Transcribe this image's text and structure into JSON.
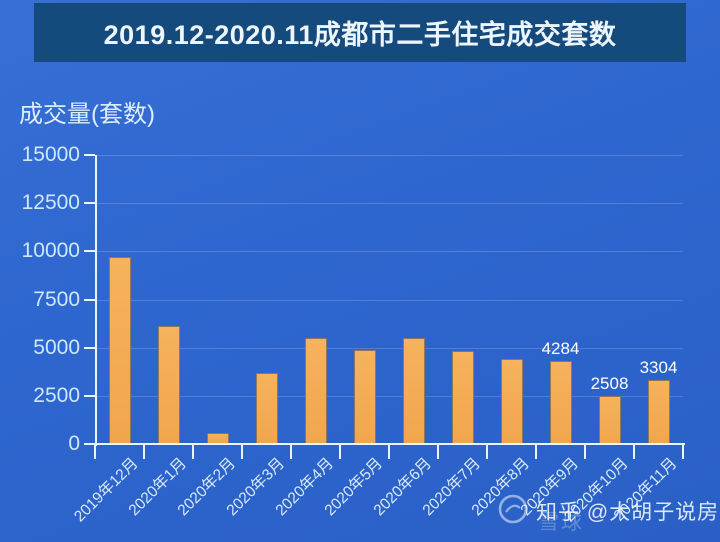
{
  "banner": {
    "title": "2019.12-2020.11成都市二手住宅成交套数"
  },
  "axis_label": "成交量(套数)",
  "watermark": {
    "logo_icon": "xueqiu-snowball-logo",
    "text": "知乎 @大胡子说房",
    "ghost_text": "雪球"
  },
  "colors": {
    "background": "#2e66cf",
    "banner": "#154a7d",
    "bar": "#f4ab52",
    "axis": "#e9f4fc",
    "tick_label": "#cde8fa",
    "data_label": "#ffffff"
  },
  "chart_data": {
    "type": "bar",
    "title": "2019.12-2020.11成都市二手住宅成交套数",
    "xlabel": "",
    "ylabel": "成交量(套数)",
    "categories": [
      "2019年12月",
      "2020年1月",
      "2020年2月",
      "2020年3月",
      "2020年4月",
      "2020年5月",
      "2020年6月",
      "2020年7月",
      "2020年8月",
      "2020年9月",
      "2020年10月",
      "2020年11月"
    ],
    "values": [
      9700,
      6100,
      550,
      3700,
      5500,
      4900,
      5500,
      4850,
      4400,
      4284,
      2508,
      3304
    ],
    "annotations": [
      {
        "index": 9,
        "text": "4284"
      },
      {
        "index": 10,
        "text": "2508"
      },
      {
        "index": 11,
        "text": "3304"
      }
    ],
    "yticks": [
      0,
      2500,
      5000,
      7500,
      10000,
      12500,
      15000
    ],
    "ylim": [
      0,
      15000
    ],
    "grid": true,
    "legend": "none",
    "bar_color": "#f4ab52"
  }
}
